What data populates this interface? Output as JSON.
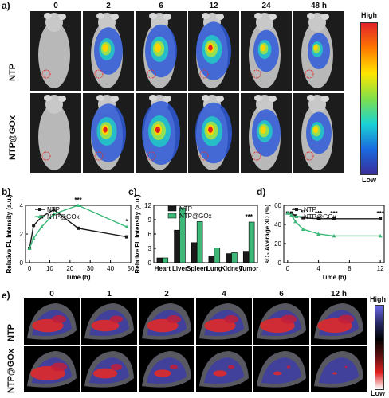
{
  "panel_a": {
    "label": "a)",
    "timepoints": [
      "0",
      "2",
      "6",
      "12",
      "24",
      "48 h"
    ],
    "rows": [
      "NTP",
      "NTP@GOx"
    ],
    "colorbar": {
      "high": "High",
      "low": "Low"
    }
  },
  "panel_e": {
    "label": "e)",
    "timepoints": [
      "0",
      "1",
      "2",
      "4",
      "6",
      "12 h"
    ],
    "rows": [
      "NTP",
      "NTP@GOx"
    ],
    "colorbar": {
      "high": "High",
      "low": "Low"
    }
  },
  "colors": {
    "ntp": "#1a1a1a",
    "gox": "#3cb878"
  },
  "chart_data": [
    {
      "id": "b",
      "panel_label": "b)",
      "type": "line",
      "xlabel": "Time (h)",
      "ylabel": "Relative FL Intensity (a.u.)",
      "xlim": [
        -2,
        50
      ],
      "ylim": [
        0,
        4
      ],
      "xticks": [
        0,
        10,
        20,
        30,
        40,
        50
      ],
      "yticks": [
        0,
        2,
        4
      ],
      "series": [
        {
          "name": "NTP",
          "x": [
            0,
            2,
            6,
            12,
            24,
            48
          ],
          "y": [
            1.0,
            2.6,
            3.2,
            3.7,
            2.4,
            1.8
          ]
        },
        {
          "name": "NTP@GOx",
          "x": [
            0,
            2,
            6,
            12,
            24,
            48
          ],
          "y": [
            1.0,
            1.7,
            2.5,
            3.4,
            4.0,
            2.5
          ]
        }
      ],
      "annotations": [
        {
          "x": 24,
          "text": "***"
        },
        {
          "x": 48,
          "text": "*"
        }
      ]
    },
    {
      "id": "c",
      "panel_label": "c)",
      "type": "bar",
      "ylabel": "Relative FL Intensity (a.u.)",
      "ylim": [
        0,
        12
      ],
      "yticks": [
        0,
        3,
        6,
        9,
        12
      ],
      "categories": [
        "Heart",
        "Liver",
        "Spleen",
        "Lung",
        "Kidney",
        "Tumor"
      ],
      "series": [
        {
          "name": "NTP",
          "values": [
            1.0,
            6.8,
            4.2,
            1.4,
            1.9,
            2.4
          ]
        },
        {
          "name": "NTP@GOx",
          "values": [
            1.0,
            11.5,
            8.6,
            3.1,
            2.1,
            8.5
          ]
        }
      ],
      "annotations": [
        {
          "category": "Tumor",
          "text": "***"
        }
      ]
    },
    {
      "id": "d",
      "panel_label": "d)",
      "type": "line",
      "xlabel": "Time (h)",
      "ylabel": "sO₂ Average 3D (%)",
      "xlim": [
        -0.5,
        12.5
      ],
      "ylim": [
        0,
        60
      ],
      "xticks": [
        0,
        4,
        8,
        12
      ],
      "yticks": [
        0,
        20,
        40,
        60
      ],
      "series": [
        {
          "name": "NTP",
          "x": [
            0,
            0.5,
            1,
            2,
            4,
            6,
            12
          ],
          "y": [
            52,
            52,
            49,
            47,
            46,
            46,
            46
          ]
        },
        {
          "name": "NTP@GOx",
          "x": [
            0,
            0.5,
            1,
            2,
            4,
            6,
            12
          ],
          "y": [
            52,
            50,
            43,
            35,
            30,
            28,
            28
          ]
        }
      ],
      "annotations": [
        {
          "x": 1,
          "text": "**"
        },
        {
          "x": 2,
          "text": "**"
        },
        {
          "x": 4,
          "text": "***"
        },
        {
          "x": 6,
          "text": "***"
        },
        {
          "x": 12,
          "text": "***"
        }
      ]
    }
  ]
}
